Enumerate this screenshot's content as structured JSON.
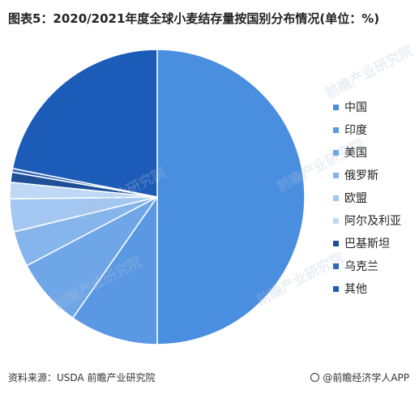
{
  "title": "图表5：2020/2021年度全球小麦结存量按国别分布情况(单位：%)",
  "footer": {
    "source": "资料来源：USDA 前瞻产业研究院",
    "brand": "@前瞻经济学人APP"
  },
  "watermark": "前瞻产业研究院",
  "chart_data": {
    "type": "pie",
    "title": "图表5：2020/2021年度全球小麦结存量按国别分布情况(单位：%)",
    "legend_position": "right",
    "start": "top, clockwise",
    "slices": [
      {
        "label": "中国",
        "value": 50.0,
        "color": "#4a8ee0"
      },
      {
        "label": "印度",
        "value": 9.7,
        "color": "#5a98e4"
      },
      {
        "label": "美国",
        "value": 7.6,
        "color": "#6ea6e8"
      },
      {
        "label": "俄罗斯",
        "value": 3.9,
        "color": "#86b4ec"
      },
      {
        "label": "欧盟",
        "value": 3.6,
        "color": "#a3c7f1"
      },
      {
        "label": "阿尔及利亚",
        "value": 1.8,
        "color": "#bfd8f5"
      },
      {
        "label": "巴基斯坦",
        "value": 1.1,
        "color": "#1e4f97"
      },
      {
        "label": "乌克兰",
        "value": 0.4,
        "color": "#3068b8"
      },
      {
        "label": "其他",
        "value": 21.9,
        "color": "#1c5bb8"
      }
    ]
  }
}
